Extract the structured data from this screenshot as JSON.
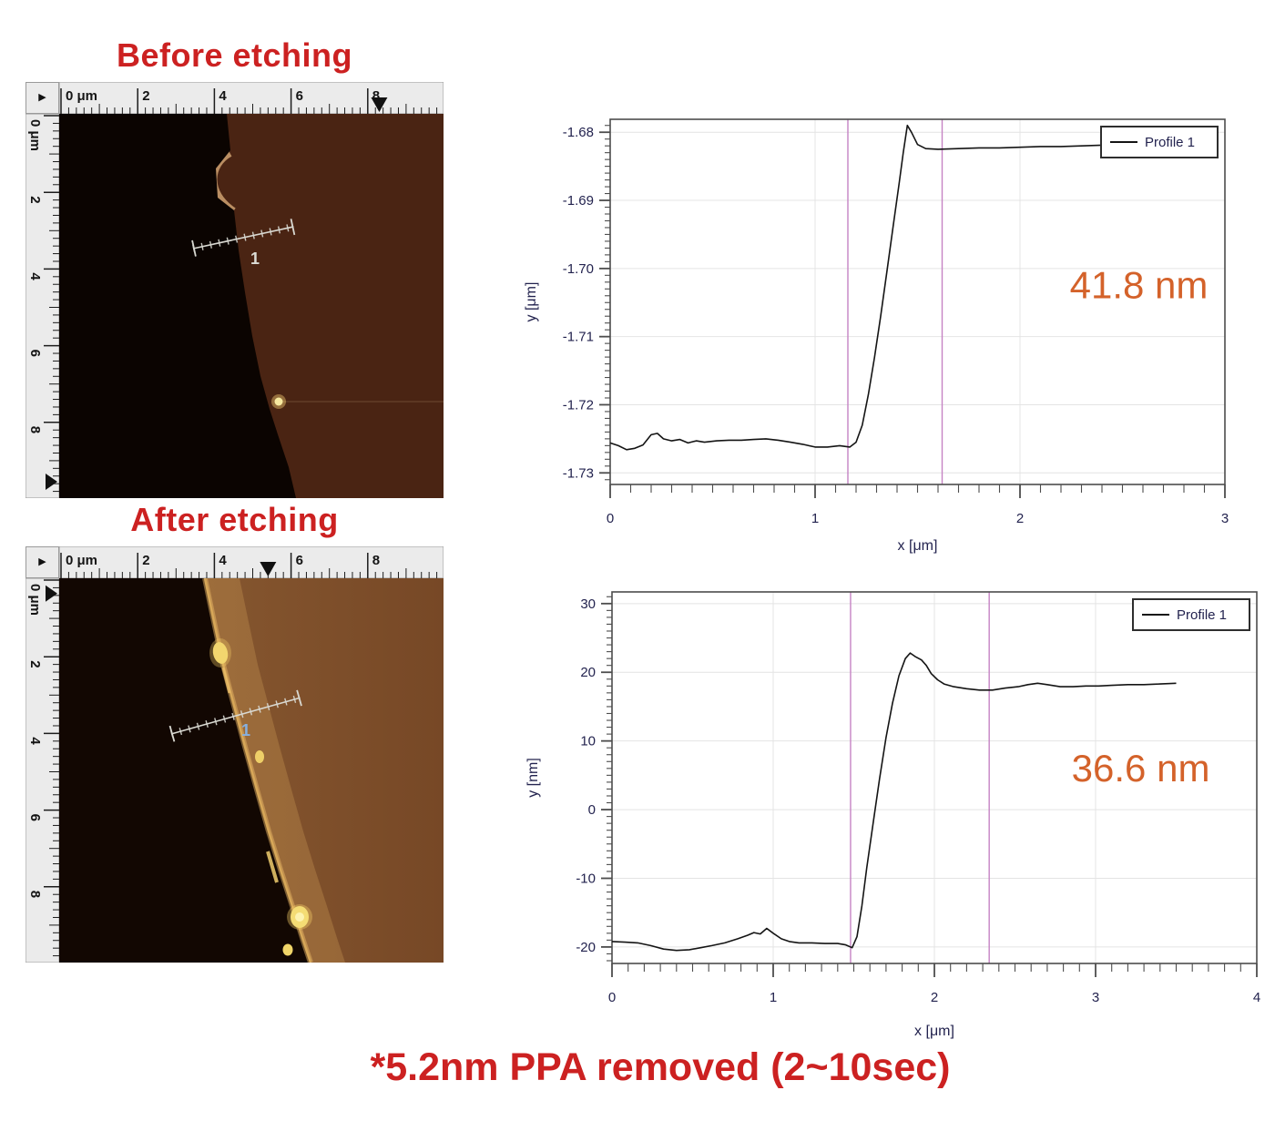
{
  "colors": {
    "title_red": "#cc2121",
    "annotation_orange": "#d4622a",
    "cursor_pink": "#c583c4",
    "grid": "#e4e4e4",
    "axis": "#4d4d4d",
    "curve": "#141414",
    "ruler_bg": "#ebebeb",
    "before_substrate": "#4a2413",
    "after_substrate": "#7c4c28",
    "dark_region": "#0b0401"
  },
  "icons": {
    "play": "▶"
  },
  "before": {
    "title": "Before etching",
    "measure_label": "1",
    "h_ruler": {
      "labels": [
        {
          "um": 0,
          "text": "0 μm"
        },
        {
          "um": 2,
          "text": "2"
        },
        {
          "um": 4,
          "text": "4"
        },
        {
          "um": 6,
          "text": "6"
        },
        {
          "um": 8,
          "text": "8"
        }
      ],
      "marker_um": 8.3
    },
    "v_ruler": {
      "labels": [
        {
          "um": 0,
          "text": "0 μm"
        },
        {
          "um": 2,
          "text": "2"
        },
        {
          "um": 4,
          "text": "4"
        },
        {
          "um": 6,
          "text": "6"
        },
        {
          "um": 8,
          "text": "8"
        }
      ],
      "marker_um": 9.55
    }
  },
  "after": {
    "title": "After etching",
    "measure_label": "1",
    "h_ruler": {
      "labels": [
        {
          "um": 0,
          "text": "0 μm"
        },
        {
          "um": 2,
          "text": "2"
        },
        {
          "um": 4,
          "text": "4"
        },
        {
          "um": 6,
          "text": "6"
        },
        {
          "um": 8,
          "text": "8"
        }
      ],
      "marker_um": 5.4
    },
    "v_ruler": {
      "labels": [
        {
          "um": 0,
          "text": "0 μm"
        },
        {
          "um": 2,
          "text": "2"
        },
        {
          "um": 4,
          "text": "4"
        },
        {
          "um": 6,
          "text": "6"
        },
        {
          "um": 8,
          "text": "8"
        }
      ],
      "marker_um": 0.35
    }
  },
  "caption": {
    "text": "*5.2nm PPA removed（2～10sec）"
  },
  "chart_data": [
    {
      "name": "profile-before",
      "type": "line",
      "title": "",
      "xlabel": "x [μm]",
      "ylabel": "y [μm]",
      "xlim": [
        0,
        3
      ],
      "ylim": [
        -1.7317,
        -1.6781
      ],
      "xticks": [
        0,
        1,
        2,
        3
      ],
      "xtick_labels": [
        "0",
        "1",
        "2",
        "3"
      ],
      "yticks": [
        -1.68,
        -1.69,
        -1.7,
        -1.71,
        -1.72,
        -1.73
      ],
      "ytick_labels": [
        "-1.68",
        "-1.69",
        "-1.70",
        "-1.71",
        "-1.72",
        "-1.73"
      ],
      "xminor": 0.1,
      "yminor": 0.001,
      "grid": true,
      "legend": "Profile 1",
      "legend_position": "top-right",
      "cursors_x": [
        1.16,
        1.62
      ],
      "annotation": {
        "text": "41.8 nm",
        "fx": 0.86,
        "fy": 0.49
      },
      "series": [
        {
          "name": "Profile 1",
          "points": [
            [
              0,
              -1.7256
            ],
            [
              0.04,
              -1.726
            ],
            [
              0.08,
              -1.7266
            ],
            [
              0.12,
              -1.7264
            ],
            [
              0.16,
              -1.7259
            ],
            [
              0.2,
              -1.7244
            ],
            [
              0.23,
              -1.7242
            ],
            [
              0.26,
              -1.725
            ],
            [
              0.3,
              -1.7253
            ],
            [
              0.34,
              -1.7251
            ],
            [
              0.38,
              -1.7256
            ],
            [
              0.42,
              -1.7253
            ],
            [
              0.46,
              -1.7255
            ],
            [
              0.52,
              -1.7253
            ],
            [
              0.58,
              -1.7252
            ],
            [
              0.64,
              -1.7252
            ],
            [
              0.7,
              -1.7251
            ],
            [
              0.76,
              -1.725
            ],
            [
              0.82,
              -1.7252
            ],
            [
              0.88,
              -1.7255
            ],
            [
              0.94,
              -1.7258
            ],
            [
              1.0,
              -1.7262
            ],
            [
              1.06,
              -1.7262
            ],
            [
              1.12,
              -1.726
            ],
            [
              1.17,
              -1.7262
            ],
            [
              1.2,
              -1.7255
            ],
            [
              1.23,
              -1.723
            ],
            [
              1.26,
              -1.7185
            ],
            [
              1.29,
              -1.713
            ],
            [
              1.32,
              -1.707
            ],
            [
              1.35,
              -1.7005
            ],
            [
              1.38,
              -1.694
            ],
            [
              1.41,
              -1.6875
            ],
            [
              1.43,
              -1.683
            ],
            [
              1.45,
              -1.679
            ],
            [
              1.47,
              -1.68
            ],
            [
              1.5,
              -1.6818
            ],
            [
              1.54,
              -1.6824
            ],
            [
              1.6,
              -1.6825
            ],
            [
              1.7,
              -1.6824
            ],
            [
              1.8,
              -1.6823
            ],
            [
              1.9,
              -1.6823
            ],
            [
              2.0,
              -1.6822
            ],
            [
              2.1,
              -1.6821
            ],
            [
              2.2,
              -1.6821
            ],
            [
              2.3,
              -1.682
            ],
            [
              2.4,
              -1.6819
            ],
            [
              2.5,
              -1.6819
            ],
            [
              2.58,
              -1.6816
            ],
            [
              2.66,
              -1.6816
            ],
            [
              2.72,
              -1.6815
            ],
            [
              2.78,
              -1.6814
            ]
          ]
        }
      ]
    },
    {
      "name": "profile-after",
      "type": "line",
      "title": "",
      "xlabel": "x [μm]",
      "ylabel": "y [nm]",
      "xlim": [
        0,
        4
      ],
      "ylim": [
        -22.4,
        31.7
      ],
      "xticks": [
        0,
        1,
        2,
        3,
        4
      ],
      "xtick_labels": [
        "0",
        "1",
        "2",
        "3",
        "4"
      ],
      "yticks": [
        30,
        20,
        10,
        0,
        -10,
        -20
      ],
      "ytick_labels": [
        "30",
        "20",
        "10",
        "0",
        "-10",
        "-20"
      ],
      "xminor": 0.1,
      "yminor": 1,
      "grid": true,
      "legend": "Profile 1",
      "legend_position": "top-right",
      "cursors_x": [
        1.48,
        2.34
      ],
      "annotation": {
        "text": "36.6 nm",
        "fx": 0.82,
        "fy": 0.51
      },
      "series": [
        {
          "name": "Profile 1",
          "points": [
            [
              0,
              -19.2
            ],
            [
              0.08,
              -19.3
            ],
            [
              0.16,
              -19.4
            ],
            [
              0.24,
              -19.8
            ],
            [
              0.32,
              -20.3
            ],
            [
              0.4,
              -20.5
            ],
            [
              0.48,
              -20.4
            ],
            [
              0.55,
              -20.1
            ],
            [
              0.62,
              -19.8
            ],
            [
              0.7,
              -19.4
            ],
            [
              0.78,
              -18.8
            ],
            [
              0.84,
              -18.3
            ],
            [
              0.88,
              -17.9
            ],
            [
              0.92,
              -18.1
            ],
            [
              0.96,
              -17.3
            ],
            [
              1.0,
              -18.0
            ],
            [
              1.05,
              -18.8
            ],
            [
              1.1,
              -19.2
            ],
            [
              1.16,
              -19.4
            ],
            [
              1.24,
              -19.4
            ],
            [
              1.32,
              -19.5
            ],
            [
              1.4,
              -19.5
            ],
            [
              1.45,
              -19.7
            ],
            [
              1.49,
              -20.1
            ],
            [
              1.52,
              -18.5
            ],
            [
              1.55,
              -14.0
            ],
            [
              1.58,
              -8.5
            ],
            [
              1.62,
              -2.0
            ],
            [
              1.66,
              4.5
            ],
            [
              1.7,
              10.5
            ],
            [
              1.74,
              15.5
            ],
            [
              1.78,
              19.5
            ],
            [
              1.82,
              22.0
            ],
            [
              1.85,
              22.8
            ],
            [
              1.88,
              22.3
            ],
            [
              1.92,
              21.8
            ],
            [
              1.95,
              21.0
            ],
            [
              1.98,
              19.8
            ],
            [
              2.02,
              18.9
            ],
            [
              2.06,
              18.3
            ],
            [
              2.12,
              17.9
            ],
            [
              2.2,
              17.6
            ],
            [
              2.28,
              17.4
            ],
            [
              2.36,
              17.4
            ],
            [
              2.44,
              17.7
            ],
            [
              2.52,
              17.9
            ],
            [
              2.58,
              18.2
            ],
            [
              2.64,
              18.4
            ],
            [
              2.7,
              18.2
            ],
            [
              2.78,
              17.9
            ],
            [
              2.86,
              17.9
            ],
            [
              2.94,
              18.0
            ],
            [
              3.02,
              18.0
            ],
            [
              3.1,
              18.1
            ],
            [
              3.2,
              18.2
            ],
            [
              3.3,
              18.2
            ],
            [
              3.4,
              18.3
            ],
            [
              3.5,
              18.4
            ]
          ]
        }
      ]
    }
  ]
}
